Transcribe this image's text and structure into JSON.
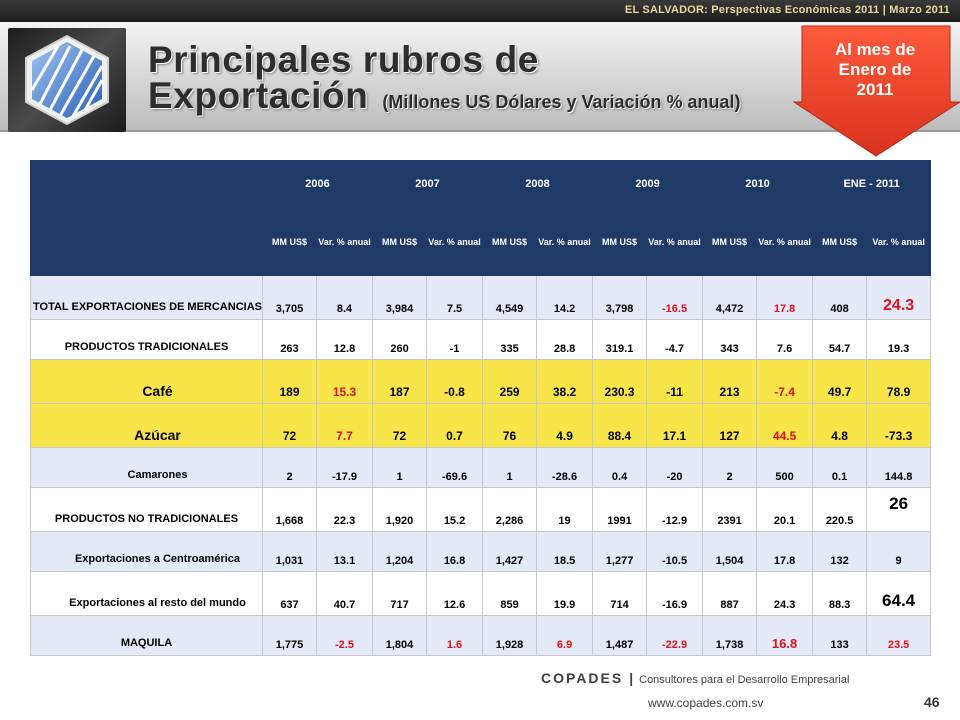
{
  "banner": {
    "text": "EL SALVADOR: Perspectivas Económicas 2011 | Marzo 2011"
  },
  "title": {
    "line1": "Principales rubros de",
    "line2": "Exportación",
    "subtitle": "(Millones US Dólares y Variación % anual)"
  },
  "badge": {
    "line1": "Al mes de",
    "line2": "Enero de",
    "line3": "2011"
  },
  "table": {
    "years": [
      "2006",
      "2007",
      "2008",
      "2009",
      "2010",
      "ENE - 2011"
    ],
    "col_mm": "MM US$",
    "col_var": "Var. % anual",
    "rows": [
      {
        "label": "TOTAL EXPORTACIONES DE MERCANCIAS",
        "values": [
          "3,705",
          "8.4",
          "3,984",
          "7.5",
          "4,549",
          "14.2",
          "3,798",
          "-16.5",
          "4,472",
          "17.8",
          "408",
          "24.3"
        ]
      },
      {
        "label": "PRODUCTOS TRADICIONALES",
        "values": [
          "263",
          "12.8",
          "260",
          "-1",
          "335",
          "28.8",
          "319.1",
          "-4.7",
          "343",
          "7.6",
          "54.7",
          "19.3"
        ]
      },
      {
        "label": "Café",
        "values": [
          "189",
          "15.3",
          "187",
          "-0.8",
          "259",
          "38.2",
          "230.3",
          "-11",
          "213",
          "-7.4",
          "49.7",
          "78.9"
        ]
      },
      {
        "label": "Azúcar",
        "values": [
          "72",
          "7.7",
          "72",
          "0.7",
          "76",
          "4.9",
          "88.4",
          "17.1",
          "127",
          "44.5",
          "4.8",
          "-73.3"
        ]
      },
      {
        "label": "Camarones",
        "values": [
          "2",
          "-17.9",
          "1",
          "-69.6",
          "1",
          "-28.6",
          "0.4",
          "-20",
          "2",
          "500",
          "0.1",
          "144.8"
        ]
      },
      {
        "label": "PRODUCTOS NO TRADICIONALES",
        "values": [
          "1,668",
          "22.3",
          "1,920",
          "15.2",
          "2,286",
          "19",
          "1991",
          "-12.9",
          "2391",
          "20.1",
          "220.5",
          "26"
        ]
      },
      {
        "label": "Exportaciones a Centroamérica",
        "values": [
          "1,031",
          "13.1",
          "1,204",
          "16.8",
          "1,427",
          "18.5",
          "1,277",
          "-10.5",
          "1,504",
          "17.8",
          "132",
          "9"
        ]
      },
      {
        "label": "Exportaciones al resto del mundo",
        "values": [
          "637",
          "40.7",
          "717",
          "12.6",
          "859",
          "19.9",
          "714",
          "-16.9",
          "887",
          "24.3",
          "88.3",
          "64.4"
        ]
      },
      {
        "label": "MAQUILA",
        "values": [
          "1,775",
          "-2.5",
          "1,804",
          "1.6",
          "1,928",
          "6.9",
          "1,487",
          "-22.9",
          "1,738",
          "16.8",
          "133",
          "23.5"
        ]
      }
    ]
  },
  "footer": {
    "brand": "COPADES",
    "separator": "|",
    "tagline": "Consultores para el Desarrollo Empresarial",
    "url": "www.copades.com.sv",
    "page": "46"
  },
  "colors": {
    "header_navy": "#1f3a66",
    "highlight_yellow": "#f7e54a",
    "row_blue": "#e3e9f6",
    "negative_red": "#e0111a",
    "arrow_red": "#e8412a"
  }
}
